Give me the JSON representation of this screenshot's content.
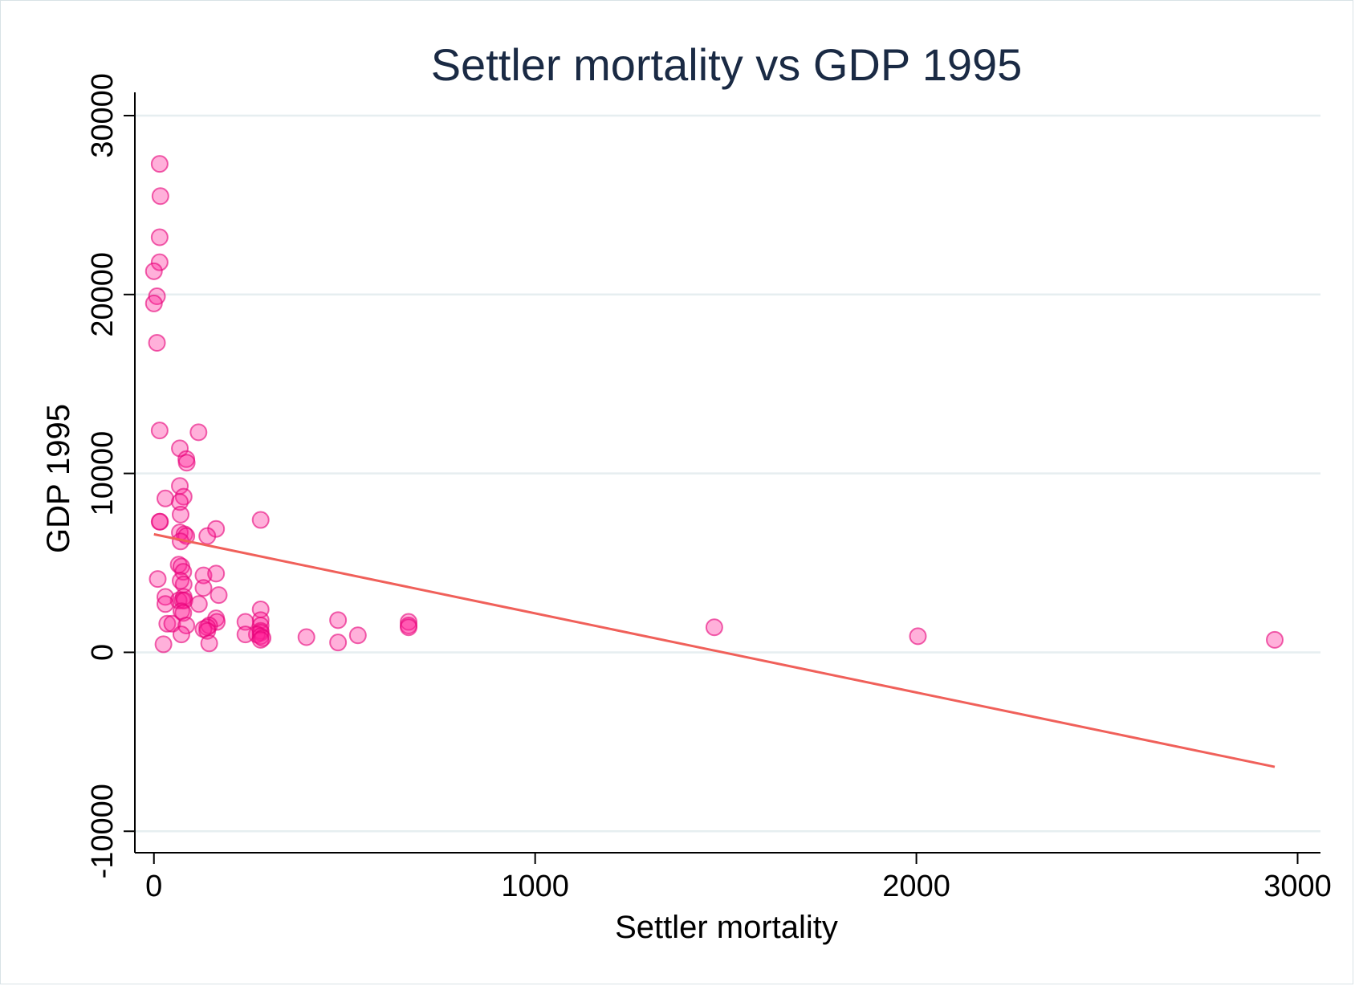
{
  "chart_data": {
    "type": "scatter",
    "title": "Settler mortality vs  GDP 1995",
    "xlabel": "Settler mortality",
    "ylabel": "GDP 1995",
    "xlim": [
      -50,
      3060
    ],
    "ylim": [
      -11200,
      31300
    ],
    "xticks": [
      0,
      1000,
      2000,
      3000
    ],
    "yticks": [
      -10000,
      0,
      10000,
      20000,
      30000
    ],
    "xtick_labels": [
      "0",
      "1000",
      "2000",
      "3000"
    ],
    "ytick_labels": [
      "-10000",
      "0",
      "10000",
      "20000",
      "30000"
    ],
    "grid": "horizontal",
    "legend": "none",
    "point_color": "#ff1e96",
    "line_color": "#f0605a",
    "points": [
      [
        15,
        27300
      ],
      [
        17,
        25500
      ],
      [
        15,
        23200
      ],
      [
        15,
        21800
      ],
      [
        0,
        21300
      ],
      [
        8,
        19900
      ],
      [
        0,
        19500
      ],
      [
        8,
        17300
      ],
      [
        15,
        12400
      ],
      [
        117,
        12300
      ],
      [
        68,
        11400
      ],
      [
        85,
        10800
      ],
      [
        86,
        10600
      ],
      [
        68,
        9300
      ],
      [
        78,
        8700
      ],
      [
        30,
        8600
      ],
      [
        68,
        8400
      ],
      [
        16,
        7300
      ],
      [
        15,
        7300
      ],
      [
        70,
        7700
      ],
      [
        280,
        7400
      ],
      [
        163,
        6900
      ],
      [
        68,
        6700
      ],
      [
        80,
        6600
      ],
      [
        140,
        6500
      ],
      [
        85,
        6500
      ],
      [
        70,
        6200
      ],
      [
        65,
        4900
      ],
      [
        72,
        4800
      ],
      [
        77,
        4500
      ],
      [
        130,
        4300
      ],
      [
        163,
        4400
      ],
      [
        10,
        4100
      ],
      [
        70,
        4000
      ],
      [
        78,
        3800
      ],
      [
        130,
        3600
      ],
      [
        170,
        3200
      ],
      [
        78,
        3100
      ],
      [
        30,
        3100
      ],
      [
        65,
        2900
      ],
      [
        75,
        2900
      ],
      [
        80,
        2900
      ],
      [
        30,
        2700
      ],
      [
        118,
        2700
      ],
      [
        72,
        2300
      ],
      [
        280,
        2400
      ],
      [
        77,
        2200
      ],
      [
        163,
        1900
      ],
      [
        280,
        1800
      ],
      [
        483,
        1800
      ],
      [
        668,
        1700
      ],
      [
        240,
        1700
      ],
      [
        165,
        1700
      ],
      [
        35,
        1600
      ],
      [
        48,
        1600
      ],
      [
        85,
        1500
      ],
      [
        145,
        1500
      ],
      [
        280,
        1500
      ],
      [
        668,
        1500
      ],
      [
        140,
        1400
      ],
      [
        130,
        1300
      ],
      [
        1470,
        1400
      ],
      [
        668,
        1400
      ],
      [
        140,
        1200
      ],
      [
        280,
        1200
      ],
      [
        280,
        1100
      ],
      [
        270,
        1000
      ],
      [
        240,
        1000
      ],
      [
        72,
        1000
      ],
      [
        535,
        950
      ],
      [
        2004,
        900
      ],
      [
        280,
        900
      ],
      [
        400,
        850
      ],
      [
        285,
        800
      ],
      [
        280,
        700
      ],
      [
        2940,
        700
      ],
      [
        483,
        550
      ],
      [
        145,
        500
      ],
      [
        25,
        450
      ]
    ],
    "fit_line": {
      "x": [
        0,
        2940
      ],
      "y": [
        6600,
        -6400
      ]
    }
  }
}
